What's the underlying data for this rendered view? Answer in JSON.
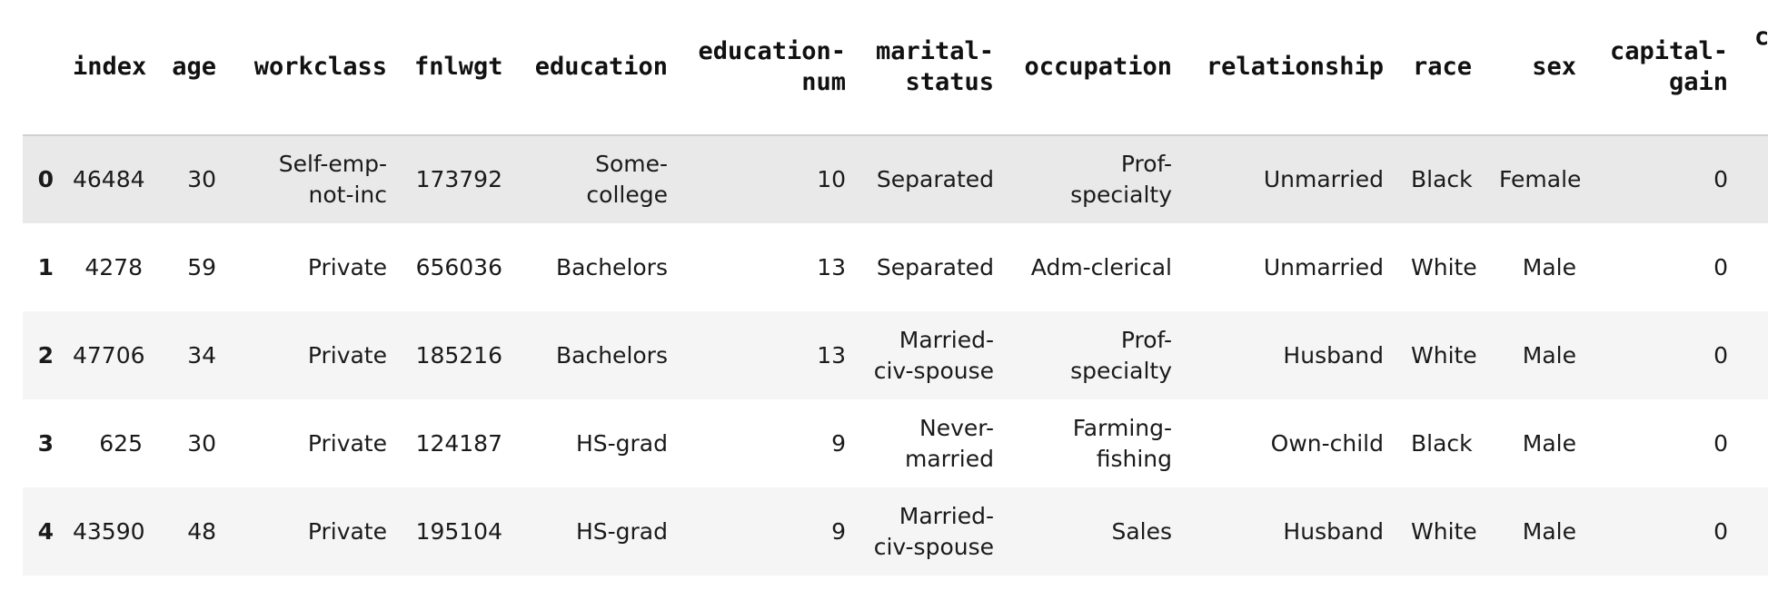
{
  "table": {
    "columns": [
      {
        "line1": "index",
        "line2": ""
      },
      {
        "line1": "age",
        "line2": ""
      },
      {
        "line1": "workclass",
        "line2": ""
      },
      {
        "line1": "fnlwgt",
        "line2": ""
      },
      {
        "line1": "education",
        "line2": ""
      },
      {
        "line1": "education-",
        "line2": "num"
      },
      {
        "line1": "marital-",
        "line2": "status"
      },
      {
        "line1": "occupation",
        "line2": ""
      },
      {
        "line1": "relationship",
        "line2": ""
      },
      {
        "line1": "race",
        "line2": ""
      },
      {
        "line1": "sex",
        "line2": ""
      },
      {
        "line1": "capital-",
        "line2": "gain"
      },
      {
        "line1": "ca",
        "line2": ""
      }
    ],
    "rows": [
      {
        "idx": "0",
        "cells": [
          [
            "46484",
            ""
          ],
          [
            "30",
            ""
          ],
          [
            "Self-emp-",
            "not-inc"
          ],
          [
            "173792",
            ""
          ],
          [
            "Some-",
            "college"
          ],
          [
            "10",
            ""
          ],
          [
            "Separated",
            ""
          ],
          [
            "Prof-specialty",
            ""
          ],
          [
            "Unmarried",
            ""
          ],
          [
            "Black",
            ""
          ],
          [
            "Female",
            ""
          ],
          [
            "0",
            ""
          ]
        ]
      },
      {
        "idx": "1",
        "cells": [
          [
            "4278",
            ""
          ],
          [
            "59",
            ""
          ],
          [
            "Private",
            ""
          ],
          [
            "656036",
            ""
          ],
          [
            "Bachelors",
            ""
          ],
          [
            "13",
            ""
          ],
          [
            "Separated",
            ""
          ],
          [
            "Adm-clerical",
            ""
          ],
          [
            "Unmarried",
            ""
          ],
          [
            "White",
            ""
          ],
          [
            "Male",
            ""
          ],
          [
            "0",
            ""
          ]
        ]
      },
      {
        "idx": "2",
        "cells": [
          [
            "47706",
            ""
          ],
          [
            "34",
            ""
          ],
          [
            "Private",
            ""
          ],
          [
            "185216",
            ""
          ],
          [
            "Bachelors",
            ""
          ],
          [
            "13",
            ""
          ],
          [
            "Married-",
            "civ-spouse"
          ],
          [
            "Prof-specialty",
            ""
          ],
          [
            "Husband",
            ""
          ],
          [
            "White",
            ""
          ],
          [
            "Male",
            ""
          ],
          [
            "0",
            ""
          ]
        ]
      },
      {
        "idx": "3",
        "cells": [
          [
            "625",
            ""
          ],
          [
            "30",
            ""
          ],
          [
            "Private",
            ""
          ],
          [
            "124187",
            ""
          ],
          [
            "HS-grad",
            ""
          ],
          [
            "9",
            ""
          ],
          [
            "Never-",
            "married"
          ],
          [
            "Farming-",
            "fishing"
          ],
          [
            "Own-child",
            ""
          ],
          [
            "Black",
            ""
          ],
          [
            "Male",
            ""
          ],
          [
            "0",
            ""
          ]
        ]
      },
      {
        "idx": "4",
        "cells": [
          [
            "43590",
            ""
          ],
          [
            "48",
            ""
          ],
          [
            "Private",
            ""
          ],
          [
            "195104",
            ""
          ],
          [
            "HS-grad",
            ""
          ],
          [
            "9",
            ""
          ],
          [
            "Married-",
            "civ-spouse"
          ],
          [
            "Sales",
            ""
          ],
          [
            "Husband",
            ""
          ],
          [
            "White",
            ""
          ],
          [
            "Male",
            ""
          ],
          [
            "0",
            ""
          ]
        ]
      }
    ]
  },
  "colors": {
    "row_hover": "#e9e9e9",
    "row_white": "#ffffff",
    "row_striped": "#f5f5f5",
    "header_rule": "#d0d0d0"
  }
}
